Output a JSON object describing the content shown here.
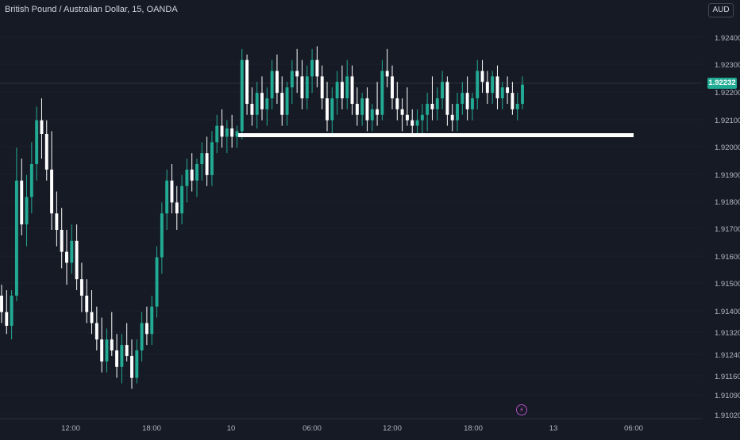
{
  "header": {
    "title": "British Pound / Australian Dollar, 15, OANDA",
    "currency_button": "AUD"
  },
  "price_axis": {
    "current_price_label": "1.92232",
    "tick_labels": [
      "1.92400",
      "1.92300",
      "1.92200",
      "1.92100",
      "1.92000",
      "1.91900",
      "1.91800",
      "1.91700",
      "1.91600",
      "1.91500",
      "1.91400",
      "1.91320",
      "1.91240",
      "1.91160",
      "1.91090",
      "1.91020"
    ]
  },
  "time_axis": {
    "tick_labels": [
      "12:00",
      "18:00",
      "10",
      "06:00",
      "12:00",
      "18:00",
      "13",
      "06:00"
    ]
  },
  "icons": {
    "alert": "lightning-icon"
  },
  "colors": {
    "background": "#161a25",
    "up_candle": "#22ab94",
    "down_candle": "#ffffff",
    "support_line": "#ffffff",
    "price_badge": "#22ab94"
  },
  "chart_data": {
    "type": "candlestick",
    "symbol": "British Pound / Australian Dollar",
    "interval": "15",
    "source": "OANDA",
    "current_price": 1.92232,
    "support_level": 1.9205,
    "ylim": [
      1.9102,
      1.9245
    ],
    "candles_ohlc": [
      [
        1.9146,
        1.915,
        1.9136,
        1.914
      ],
      [
        1.914,
        1.9148,
        1.9132,
        1.9135
      ],
      [
        1.9135,
        1.9148,
        1.913,
        1.9146
      ],
      [
        1.9146,
        1.92,
        1.9144,
        1.9188
      ],
      [
        1.9188,
        1.9196,
        1.9168,
        1.9172
      ],
      [
        1.9172,
        1.919,
        1.9164,
        1.9182
      ],
      [
        1.9182,
        1.9202,
        1.9176,
        1.9194
      ],
      [
        1.9194,
        1.9215,
        1.9188,
        1.921
      ],
      [
        1.921,
        1.9218,
        1.9196,
        1.9205
      ],
      [
        1.9205,
        1.921,
        1.9188,
        1.9192
      ],
      [
        1.9192,
        1.9206,
        1.917,
        1.9176
      ],
      [
        1.9176,
        1.9184,
        1.9164,
        1.917
      ],
      [
        1.917,
        1.9178,
        1.9156,
        1.9162
      ],
      [
        1.9162,
        1.917,
        1.915,
        1.9158
      ],
      [
        1.9158,
        1.9172,
        1.9154,
        1.9166
      ],
      [
        1.9166,
        1.9172,
        1.9148,
        1.9152
      ],
      [
        1.9152,
        1.9158,
        1.914,
        1.9146
      ],
      [
        1.9146,
        1.9152,
        1.9136,
        1.914
      ],
      [
        1.914,
        1.9148,
        1.9132,
        1.9136
      ],
      [
        1.9136,
        1.9142,
        1.9126,
        1.913
      ],
      [
        1.913,
        1.9138,
        1.9118,
        1.9122
      ],
      [
        1.9122,
        1.9134,
        1.9118,
        1.913
      ],
      [
        1.913,
        1.914,
        1.9124,
        1.9126
      ],
      [
        1.9126,
        1.9132,
        1.9116,
        1.912
      ],
      [
        1.912,
        1.9132,
        1.9114,
        1.9128
      ],
      [
        1.9128,
        1.9136,
        1.9122,
        1.9124
      ],
      [
        1.9124,
        1.913,
        1.9112,
        1.9116
      ],
      [
        1.9116,
        1.913,
        1.9114,
        1.9126
      ],
      [
        1.9126,
        1.914,
        1.9122,
        1.9136
      ],
      [
        1.9136,
        1.9142,
        1.9128,
        1.9132
      ],
      [
        1.9132,
        1.9146,
        1.9128,
        1.9142
      ],
      [
        1.9142,
        1.9164,
        1.9138,
        1.916
      ],
      [
        1.916,
        1.918,
        1.9154,
        1.9176
      ],
      [
        1.9176,
        1.9192,
        1.917,
        1.9188
      ],
      [
        1.9188,
        1.9194,
        1.9176,
        1.918
      ],
      [
        1.918,
        1.9186,
        1.917,
        1.9176
      ],
      [
        1.9176,
        1.919,
        1.9172,
        1.9186
      ],
      [
        1.9186,
        1.9196,
        1.918,
        1.9192
      ],
      [
        1.9192,
        1.9198,
        1.9184,
        1.9188
      ],
      [
        1.9188,
        1.9196,
        1.9182,
        1.9194
      ],
      [
        1.9194,
        1.9202,
        1.9188,
        1.9198
      ],
      [
        1.9198,
        1.9204,
        1.9186,
        1.919
      ],
      [
        1.919,
        1.9206,
        1.9186,
        1.9202
      ],
      [
        1.9202,
        1.9212,
        1.9198,
        1.9208
      ],
      [
        1.9208,
        1.9214,
        1.92,
        1.9204
      ],
      [
        1.9204,
        1.921,
        1.9198,
        1.9207
      ],
      [
        1.9207,
        1.9212,
        1.92,
        1.9204
      ],
      [
        1.9204,
        1.9208,
        1.92,
        1.9206
      ],
      [
        1.9206,
        1.9236,
        1.9203,
        1.9232
      ],
      [
        1.9232,
        1.9234,
        1.9212,
        1.9216
      ],
      [
        1.9216,
        1.9222,
        1.9208,
        1.9212
      ],
      [
        1.9212,
        1.9224,
        1.9207,
        1.922
      ],
      [
        1.922,
        1.9226,
        1.921,
        1.9214
      ],
      [
        1.9214,
        1.9222,
        1.9208,
        1.9218
      ],
      [
        1.9218,
        1.9232,
        1.9214,
        1.9228
      ],
      [
        1.9228,
        1.9234,
        1.9216,
        1.922
      ],
      [
        1.922,
        1.9226,
        1.9208,
        1.9212
      ],
      [
        1.9212,
        1.9224,
        1.9208,
        1.9222
      ],
      [
        1.9222,
        1.9232,
        1.9216,
        1.9228
      ],
      [
        1.9228,
        1.9236,
        1.922,
        1.9226
      ],
      [
        1.9226,
        1.9232,
        1.9214,
        1.9218
      ],
      [
        1.9218,
        1.923,
        1.9214,
        1.9226
      ],
      [
        1.9226,
        1.9236,
        1.922,
        1.9232
      ],
      [
        1.9232,
        1.9237,
        1.9222,
        1.9226
      ],
      [
        1.9226,
        1.923,
        1.9214,
        1.9218
      ],
      [
        1.9218,
        1.9224,
        1.9206,
        1.921
      ],
      [
        1.921,
        1.9222,
        1.9204,
        1.9218
      ],
      [
        1.9218,
        1.9228,
        1.9212,
        1.9224
      ],
      [
        1.9224,
        1.923,
        1.9214,
        1.9218
      ],
      [
        1.9218,
        1.9232,
        1.9214,
        1.9226
      ],
      [
        1.9226,
        1.923,
        1.9212,
        1.9216
      ],
      [
        1.9216,
        1.9222,
        1.9208,
        1.9212
      ],
      [
        1.9212,
        1.922,
        1.9208,
        1.9218
      ],
      [
        1.9218,
        1.9222,
        1.9206,
        1.921
      ],
      [
        1.921,
        1.9216,
        1.9206,
        1.9214
      ],
      [
        1.9214,
        1.9224,
        1.9208,
        1.9212
      ],
      [
        1.9212,
        1.9232,
        1.921,
        1.9228
      ],
      [
        1.9228,
        1.9236,
        1.9222,
        1.9226
      ],
      [
        1.9226,
        1.923,
        1.9214,
        1.9218
      ],
      [
        1.9218,
        1.9224,
        1.921,
        1.9214
      ],
      [
        1.9214,
        1.9218,
        1.9206,
        1.9212
      ],
      [
        1.9212,
        1.9222,
        1.9208,
        1.921
      ],
      [
        1.921,
        1.9214,
        1.9204,
        1.9208
      ],
      [
        1.9208,
        1.9214,
        1.9204,
        1.921
      ],
      [
        1.921,
        1.9216,
        1.9204,
        1.9212
      ],
      [
        1.9212,
        1.922,
        1.9206,
        1.9216
      ],
      [
        1.9216,
        1.9226,
        1.921,
        1.9214
      ],
      [
        1.9214,
        1.9222,
        1.921,
        1.9218
      ],
      [
        1.9218,
        1.9228,
        1.9214,
        1.9224
      ],
      [
        1.9224,
        1.9226,
        1.9208,
        1.9212
      ],
      [
        1.9212,
        1.9216,
        1.9206,
        1.921
      ],
      [
        1.921,
        1.922,
        1.9206,
        1.9216
      ],
      [
        1.9216,
        1.9224,
        1.9212,
        1.922
      ],
      [
        1.922,
        1.9226,
        1.921,
        1.9214
      ],
      [
        1.9214,
        1.922,
        1.921,
        1.9218
      ],
      [
        1.9218,
        1.9232,
        1.9214,
        1.9228
      ],
      [
        1.9228,
        1.9232,
        1.922,
        1.9224
      ],
      [
        1.9224,
        1.9228,
        1.9216,
        1.922
      ],
      [
        1.922,
        1.9228,
        1.9216,
        1.9226
      ],
      [
        1.9226,
        1.923,
        1.9214,
        1.9218
      ],
      [
        1.9218,
        1.9224,
        1.9214,
        1.9222
      ],
      [
        1.9222,
        1.9226,
        1.9216,
        1.922
      ],
      [
        1.922,
        1.9224,
        1.9212,
        1.9214
      ],
      [
        1.9214,
        1.922,
        1.921,
        1.9216
      ],
      [
        1.9216,
        1.9226,
        1.9214,
        1.9223
      ]
    ]
  }
}
